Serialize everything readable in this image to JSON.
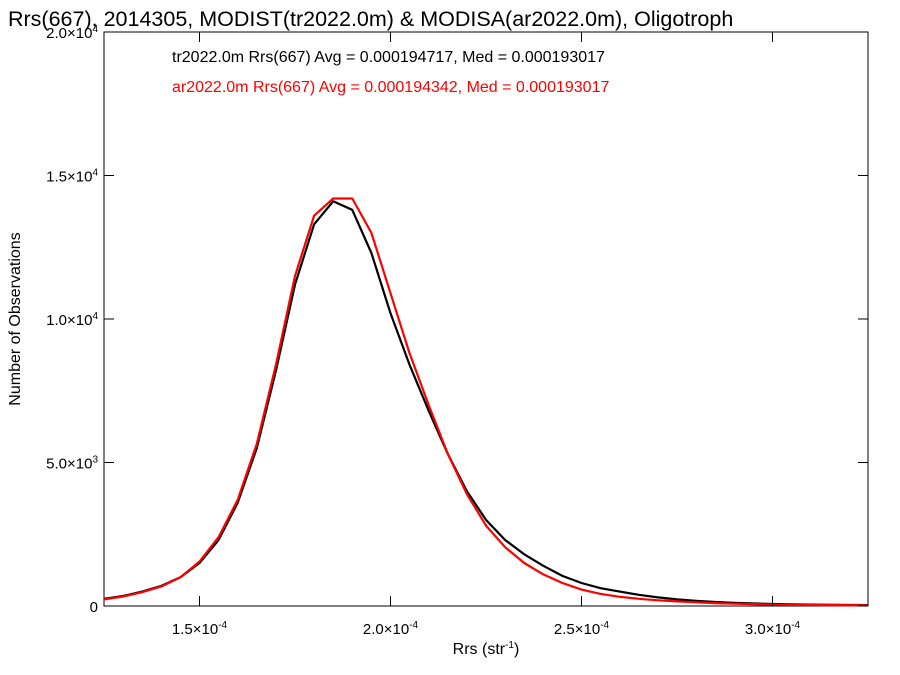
{
  "chart_data": {
    "type": "line",
    "title": "Rrs(667), 2014305, MODIST(tr2022.0m) & MODISA(ar2022.0m), Oligotroph",
    "xlabel_text": "Rrs (str",
    "xlabel_exp": "-1",
    "xlabel_close": ")",
    "ylabel": "Number of Observations",
    "xlim": [
      0.000125,
      0.000325
    ],
    "ylim": [
      0,
      20000
    ],
    "x_ticks": [
      {
        "value": 0.00015,
        "mant": "1.5×10",
        "exp": "-4"
      },
      {
        "value": 0.0002,
        "mant": "2.0×10",
        "exp": "-4"
      },
      {
        "value": 0.00025,
        "mant": "2.5×10",
        "exp": "-4"
      },
      {
        "value": 0.0003,
        "mant": "3.0×10",
        "exp": "-4"
      }
    ],
    "y_ticks": [
      {
        "value": 0,
        "mant": "0",
        "exp": ""
      },
      {
        "value": 5000,
        "mant": "5.0×10",
        "exp": "3"
      },
      {
        "value": 10000,
        "mant": "1.0×10",
        "exp": "4"
      },
      {
        "value": 15000,
        "mant": "1.5×10",
        "exp": "4"
      },
      {
        "value": 20000,
        "mant": "2.0×10",
        "exp": "4"
      }
    ],
    "annotations": [
      {
        "text": "tr2022.0m Rrs(667) Avg = 0.000194717, Med = 0.000193017",
        "color": "#000000"
      },
      {
        "text": "ar2022.0m Rrs(667) Avg = 0.000194342, Med = 0.000193017",
        "color": "#ff0000"
      }
    ],
    "series": [
      {
        "name": "tr2022.0m",
        "color": "#000000",
        "x": [
          0.000125,
          0.00013,
          0.000135,
          0.00014,
          0.000145,
          0.00015,
          0.000155,
          0.00016,
          0.000165,
          0.00017,
          0.000175,
          0.00018,
          0.000185,
          0.00019,
          0.000195,
          0.0002,
          0.000205,
          0.00021,
          0.000215,
          0.00022,
          0.000225,
          0.00023,
          0.000235,
          0.00024,
          0.000245,
          0.00025,
          0.000255,
          0.00026,
          0.000265,
          0.00027,
          0.000275,
          0.00028,
          0.000285,
          0.00029,
          0.0003,
          0.00031,
          0.000325
        ],
        "y": [
          250,
          350,
          500,
          700,
          1000,
          1500,
          2300,
          3600,
          5500,
          8200,
          11200,
          13300,
          14100,
          13800,
          12300,
          10200,
          8400,
          6800,
          5300,
          4000,
          3000,
          2300,
          1800,
          1400,
          1050,
          800,
          620,
          500,
          390,
          300,
          230,
          180,
          140,
          110,
          70,
          50,
          30
        ]
      },
      {
        "name": "ar2022.0m",
        "color": "#ff0000",
        "x": [
          0.000125,
          0.00013,
          0.000135,
          0.00014,
          0.000145,
          0.00015,
          0.000155,
          0.00016,
          0.000165,
          0.00017,
          0.000175,
          0.00018,
          0.000185,
          0.00019,
          0.000195,
          0.0002,
          0.000205,
          0.00021,
          0.000215,
          0.00022,
          0.000225,
          0.00023,
          0.000235,
          0.00024,
          0.000245,
          0.00025,
          0.000255,
          0.00026,
          0.000265,
          0.00027,
          0.000275,
          0.00028,
          0.000285,
          0.00029,
          0.0003,
          0.00031,
          0.000325
        ],
        "y": [
          230,
          330,
          480,
          680,
          1000,
          1550,
          2400,
          3700,
          5650,
          8400,
          11500,
          13600,
          14200,
          14200,
          13000,
          10900,
          8800,
          7000,
          5300,
          3900,
          2800,
          2050,
          1500,
          1100,
          800,
          570,
          420,
          320,
          250,
          200,
          160,
          130,
          100,
          80,
          50,
          35,
          20
        ]
      }
    ]
  }
}
